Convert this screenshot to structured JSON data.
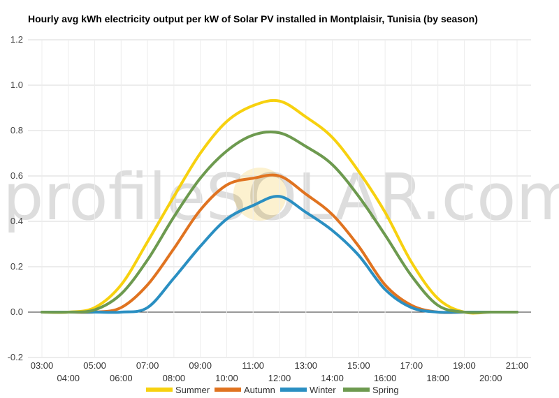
{
  "chart_data": {
    "type": "line",
    "title": "Hourly avg kWh electricity output per kW of Solar PV installed in Montplaisir, Tunisia (by season)",
    "watermark": "profileSOLAR.com",
    "xlabel": "",
    "ylabel": "",
    "ylim": [
      -0.2,
      1.2
    ],
    "yticks": [
      1.2,
      1.0,
      0.8,
      0.6,
      0.4,
      0.2,
      0.0,
      -0.2
    ],
    "ytick_labels": [
      "1.2",
      "1.0",
      "0.8",
      "0.6",
      "0.4",
      "0.2",
      "0.0",
      "-0.2"
    ],
    "x": [
      "03:00",
      "04:00",
      "05:00",
      "06:00",
      "07:00",
      "08:00",
      "09:00",
      "10:00",
      "11:00",
      "12:00",
      "13:00",
      "14:00",
      "15:00",
      "16:00",
      "17:00",
      "18:00",
      "19:00",
      "20:00",
      "21:00"
    ],
    "grid": true,
    "legend_position": "bottom",
    "series": [
      {
        "name": "Summer",
        "color": "#f7d10f",
        "values": [
          0.0,
          0.0,
          0.02,
          0.12,
          0.31,
          0.51,
          0.7,
          0.84,
          0.91,
          0.93,
          0.86,
          0.77,
          0.62,
          0.44,
          0.22,
          0.06,
          0.0,
          0.0,
          0.0
        ]
      },
      {
        "name": "Autumn",
        "color": "#e07320",
        "values": [
          0.0,
          0.0,
          0.0,
          0.02,
          0.12,
          0.28,
          0.45,
          0.56,
          0.59,
          0.6,
          0.52,
          0.43,
          0.29,
          0.12,
          0.03,
          0.0,
          0.0,
          0.0,
          0.0
        ]
      },
      {
        "name": "Winter",
        "color": "#2a8fc2",
        "values": [
          0.0,
          0.0,
          0.0,
          0.0,
          0.02,
          0.15,
          0.29,
          0.41,
          0.47,
          0.51,
          0.44,
          0.36,
          0.25,
          0.1,
          0.02,
          0.0,
          0.0,
          0.0,
          0.0
        ]
      },
      {
        "name": "Spring",
        "color": "#6d9a4f",
        "values": [
          0.0,
          0.0,
          0.01,
          0.08,
          0.23,
          0.42,
          0.59,
          0.71,
          0.78,
          0.79,
          0.73,
          0.65,
          0.51,
          0.34,
          0.16,
          0.03,
          0.0,
          0.0,
          0.0
        ]
      }
    ]
  }
}
